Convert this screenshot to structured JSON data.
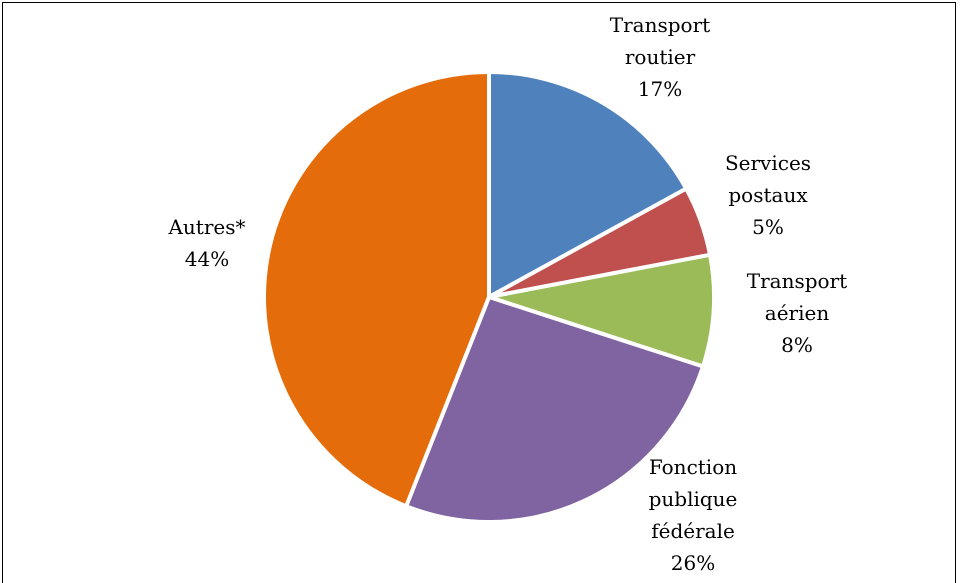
{
  "chart_data": {
    "type": "pie",
    "categories": [
      "Transport routier",
      "Services postaux",
      "Transport aérien",
      "Fonction publique fédérale",
      "Autres*"
    ],
    "values": [
      17,
      5,
      8,
      26,
      44
    ],
    "value_labels": [
      "17%",
      "5%",
      "8%",
      "26%",
      "44%"
    ],
    "colors": [
      "#4f81bd",
      "#c0504d",
      "#9bbb59",
      "#8064a2",
      "#e46c0a"
    ]
  }
}
